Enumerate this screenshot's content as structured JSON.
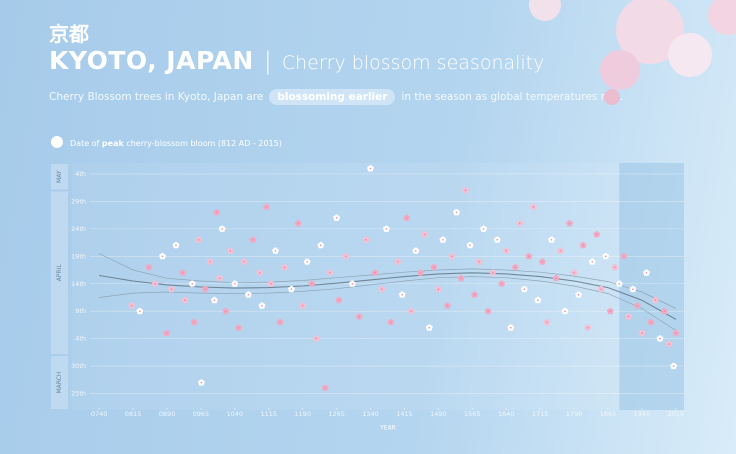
{
  "kanji": "京都",
  "chart_data": {
    "type": "scatter",
    "title": "KYOTO, JAPAN",
    "separator": "|",
    "subtitle": "Cherry blossom seasonality",
    "description": {
      "before": "Cherry Blossom trees in Kyoto, Japan are",
      "highlight": "blossoming earlier",
      "after": "in the season as global temperatures rise."
    },
    "legend": {
      "before": "Date of ",
      "bold": "peak",
      "after": " cherry-blossom bloom (812 AD - 2015)"
    },
    "xlabel": "YEAR",
    "xlim": [
      680,
      2033
    ],
    "ylim": [
      81,
      126
    ],
    "xticks": [
      {
        "value": 740,
        "label": "0740"
      },
      {
        "value": 815,
        "label": "0815"
      },
      {
        "value": 890,
        "label": "0890"
      },
      {
        "value": 965,
        "label": "0965"
      },
      1040,
      1115,
      1190,
      1265,
      1340,
      1415,
      1490,
      1565,
      1640,
      1715,
      1790,
      1865,
      1940,
      2015
    ],
    "yticks": [
      {
        "value": 84,
        "label": "25th"
      },
      {
        "value": 89,
        "label": "30th"
      },
      {
        "value": 94,
        "label": "4th"
      },
      {
        "value": 99,
        "label": "9th"
      },
      {
        "value": 104,
        "label": "14th"
      },
      {
        "value": 109,
        "label": "19th"
      },
      {
        "value": 114,
        "label": "24th"
      },
      {
        "value": 119,
        "label": "29th"
      },
      {
        "value": 124,
        "label": "4th"
      }
    ],
    "grid": true,
    "months": [
      {
        "name": "MARCH",
        "start": 81,
        "end": 91
      },
      {
        "name": "APRIL",
        "start": 91,
        "end": 121
      },
      {
        "name": "MAY",
        "start": 121,
        "end": 126
      }
    ],
    "highlight_x": [
      1890,
      2033
    ],
    "colors": [
      "#f6bfd2",
      "#ffffff",
      "#f2a9c2"
    ],
    "x": [
      812,
      830,
      850,
      864,
      880,
      889,
      900,
      910,
      925,
      930,
      946,
      950,
      960,
      966,
      975,
      985,
      995,
      1000,
      1006,
      1012,
      1020,
      1030,
      1040,
      1048,
      1060,
      1070,
      1080,
      1095,
      1100,
      1110,
      1120,
      1130,
      1140,
      1150,
      1165,
      1180,
      1190,
      1200,
      1210,
      1220,
      1230,
      1240,
      1250,
      1265,
      1270,
      1285,
      1300,
      1315,
      1330,
      1340,
      1350,
      1365,
      1375,
      1385,
      1400,
      1410,
      1420,
      1430,
      1440,
      1450,
      1460,
      1470,
      1480,
      1490,
      1500,
      1510,
      1520,
      1530,
      1540,
      1550,
      1560,
      1570,
      1580,
      1590,
      1600,
      1610,
      1620,
      1630,
      1640,
      1650,
      1660,
      1670,
      1680,
      1690,
      1700,
      1710,
      1720,
      1730,
      1740,
      1750,
      1760,
      1770,
      1780,
      1790,
      1800,
      1810,
      1820,
      1830,
      1840,
      1850,
      1860,
      1870,
      1880,
      1890,
      1900,
      1910,
      1920,
      1930,
      1940,
      1950,
      1960,
      1970,
      1980,
      1990,
      2000,
      2010,
      2015
    ],
    "values": [
      100,
      99,
      107,
      104,
      109,
      95,
      103,
      111,
      106,
      101,
      104,
      97,
      112,
      86,
      103,
      108,
      101,
      117,
      105,
      114,
      99,
      110,
      104,
      96,
      108,
      102,
      112,
      106,
      100,
      118,
      104,
      110,
      97,
      107,
      103,
      115,
      100,
      108,
      104,
      94,
      111,
      85,
      106,
      116,
      101,
      109,
      104,
      98,
      112,
      125,
      106,
      103,
      114,
      97,
      108,
      102,
      116,
      99,
      110,
      106,
      113,
      96,
      107,
      103,
      112,
      100,
      109,
      117,
      105,
      121,
      111,
      102,
      108,
      114,
      99,
      106,
      112,
      104,
      110,
      96,
      107,
      115,
      103,
      109,
      118,
      101,
      108,
      97,
      112,
      105,
      110,
      99,
      115,
      106,
      102,
      111,
      96,
      108,
      113,
      103,
      109,
      99,
      107,
      104,
      109,
      98,
      103,
      100,
      95,
      106,
      97,
      101,
      94,
      99,
      93,
      89,
      95
    ],
    "trend": [
      {
        "color": "#6f8696",
        "x": [
          740,
          815,
          890,
          965,
          1040,
          1115,
          1190,
          1265,
          1340,
          1415,
          1490,
          1565,
          1640,
          1715,
          1790,
          1865,
          1940,
          2015
        ],
        "values": [
          105.5,
          104.5,
          103.8,
          103.4,
          103.2,
          103.3,
          103.6,
          104.1,
          104.7,
          105.3,
          105.8,
          106,
          105.8,
          105.3,
          104.5,
          103.3,
          101,
          97.5
        ]
      },
      {
        "color": "#8fa6b6",
        "x": [
          740,
          815,
          890,
          965,
          1040,
          1115,
          1190,
          1265,
          1340,
          1415,
          1490,
          1565,
          1640,
          1715,
          1790,
          1865,
          1940,
          2015
        ],
        "values": [
          109.5,
          106.5,
          105,
          104.5,
          104.2,
          104.3,
          104.6,
          105.1,
          105.6,
          106.1,
          106.5,
          106.7,
          106.5,
          106.1,
          105.4,
          104.4,
          102.5,
          99.5
        ]
      },
      {
        "color": "#8fa6b6",
        "x": [
          740,
          815,
          890,
          965,
          1040,
          1115,
          1190,
          1265,
          1340,
          1415,
          1490,
          1565,
          1640,
          1715,
          1790,
          1865,
          1940,
          2015
        ],
        "values": [
          101.5,
          102.3,
          102.5,
          102.3,
          102.2,
          102.3,
          102.6,
          103.1,
          103.8,
          104.5,
          105.1,
          105.3,
          105.1,
          104.5,
          103.6,
          102.2,
          99.5,
          95.5
        ]
      }
    ]
  }
}
